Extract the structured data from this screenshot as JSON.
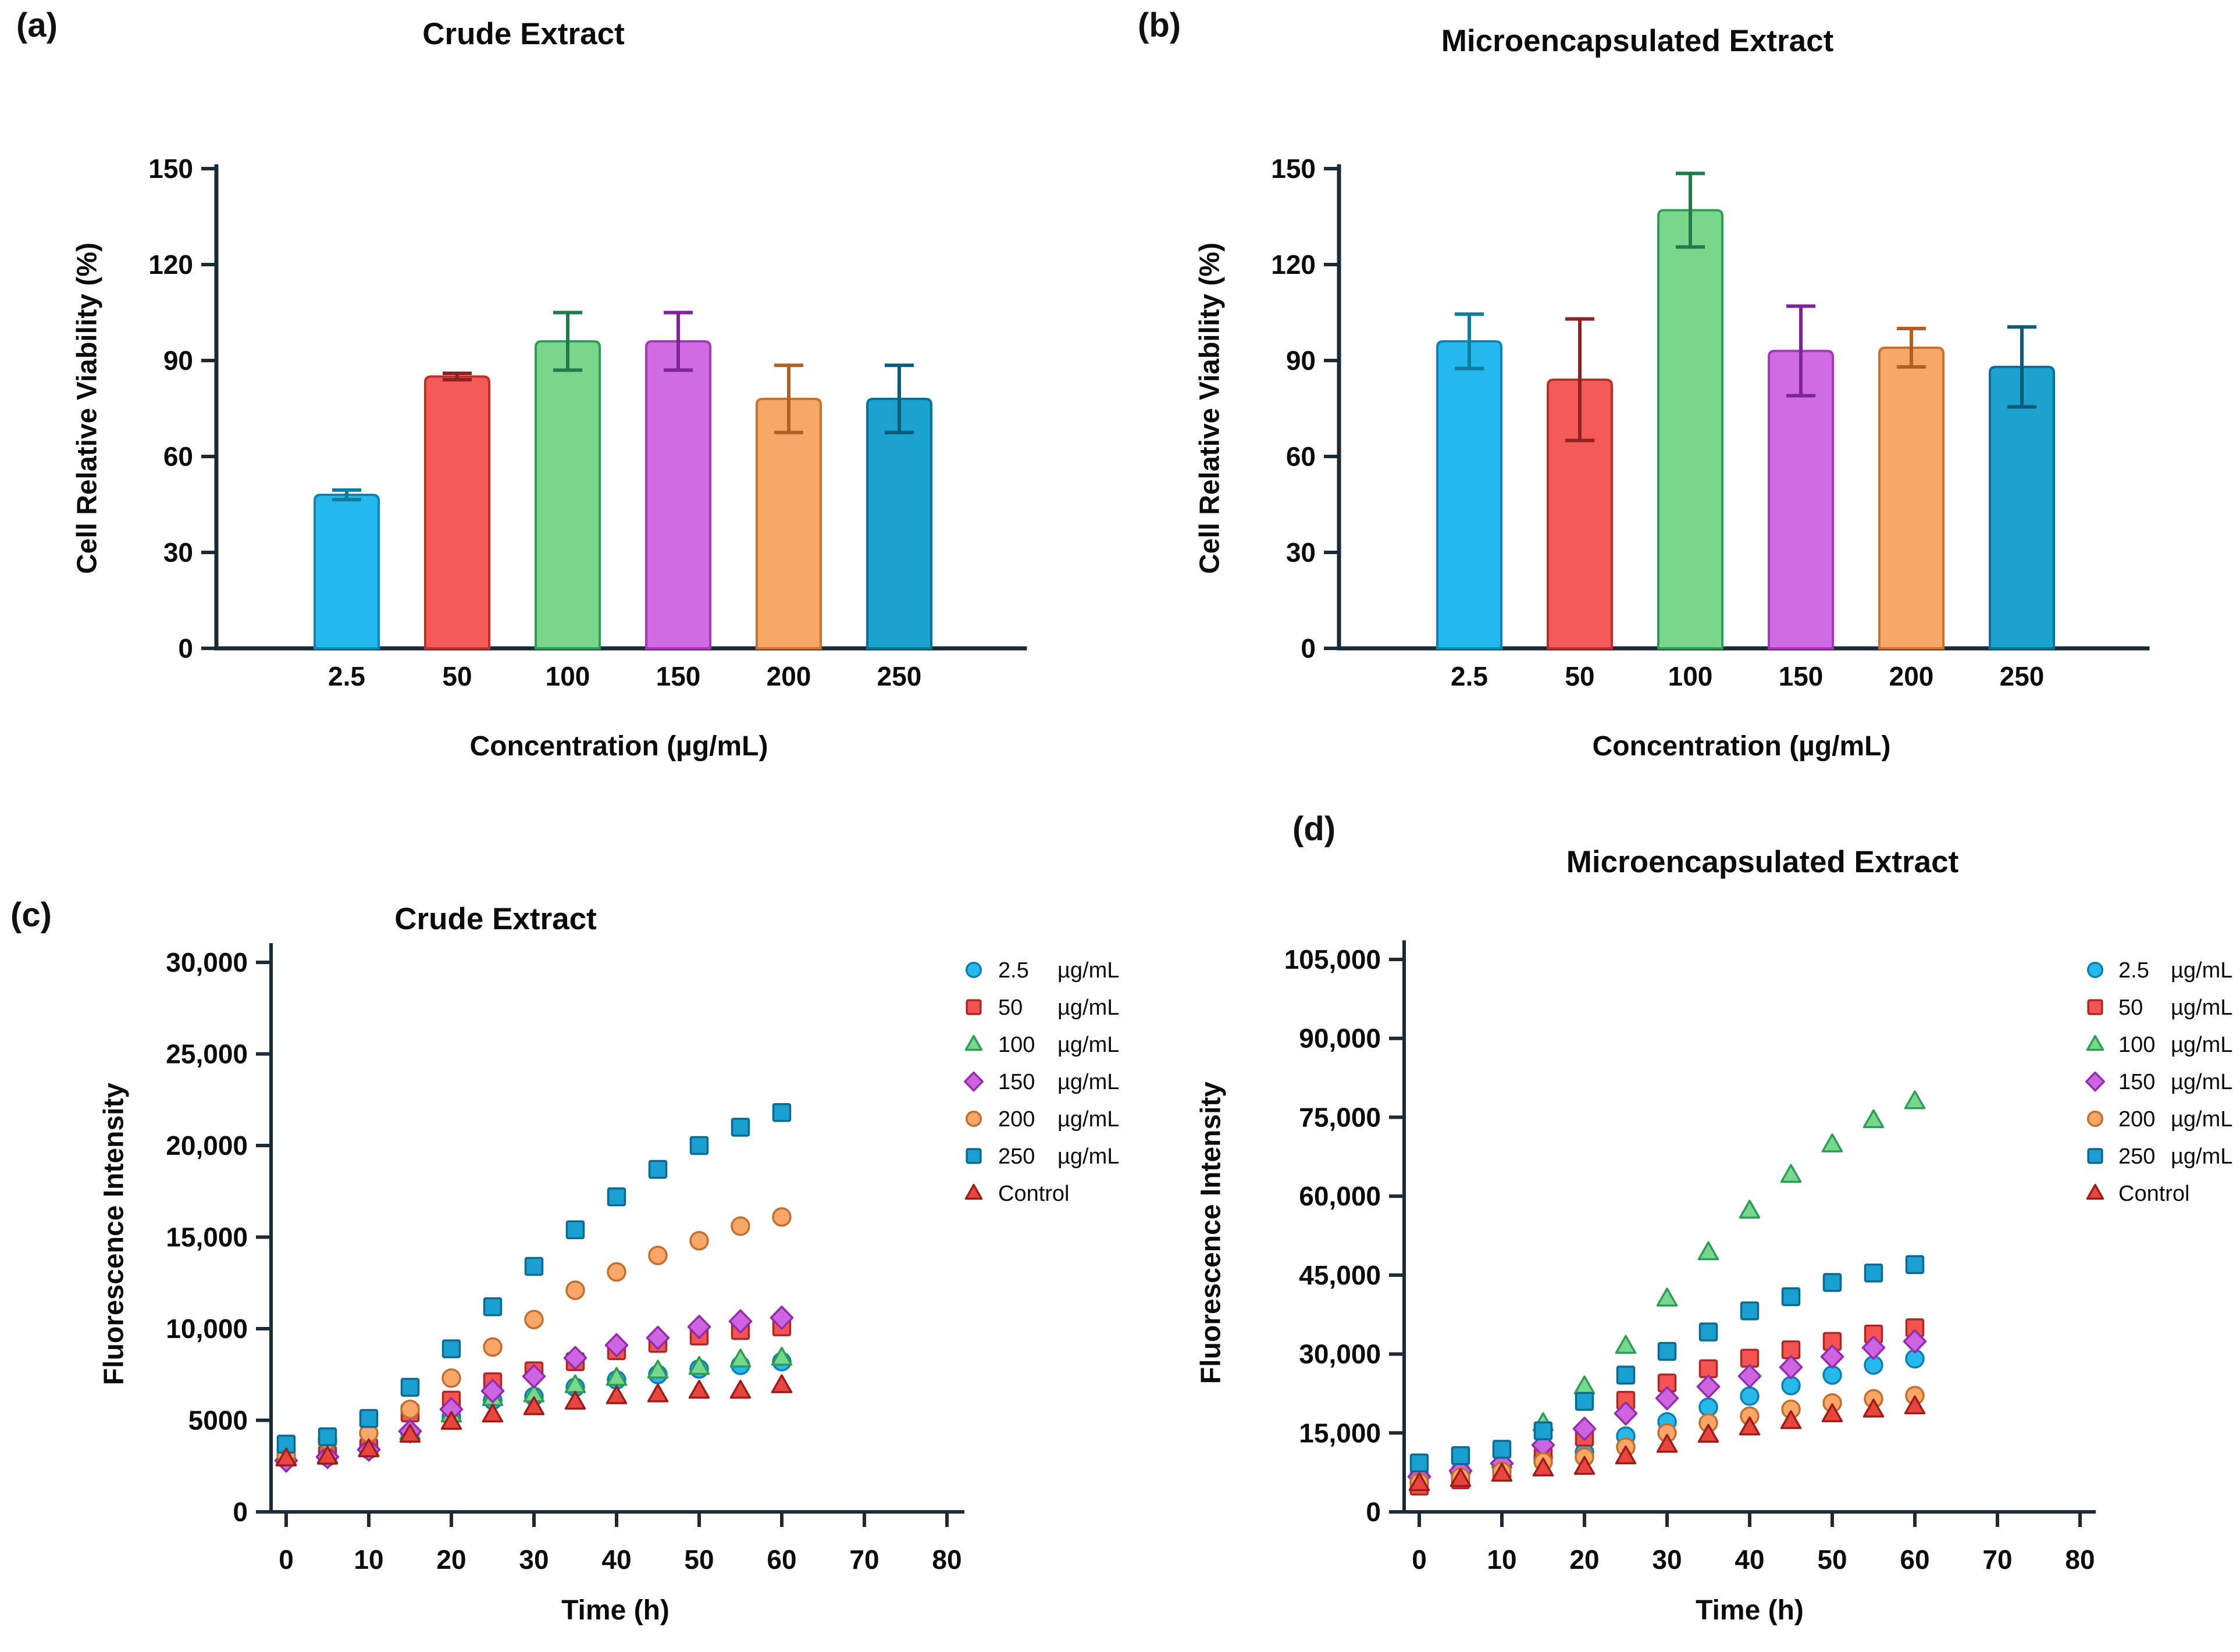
{
  "figure": {
    "background": "#ffffff",
    "axis_color": "#1c2a35",
    "text_color": "#0b0b0b"
  },
  "panels": {
    "a": {
      "letter": "(a)",
      "title": "Crude Extract",
      "ylabel": "Cell Relative Viability (%)",
      "xlabel": "Concentration (µg/mL)"
    },
    "b": {
      "letter": "(b)",
      "title": "Microencapsulated Extract",
      "ylabel": "Cell Relative Viability (%)",
      "xlabel": "Concentration (µg/mL)"
    },
    "c": {
      "letter": "(c)",
      "title": "Crude Extract",
      "ylabel": "Fluorescence Intensity",
      "xlabel": "Time (h)"
    },
    "d": {
      "letter": "(d)",
      "title": "Microencapsulated Extract",
      "ylabel": "Fluorescence Intensity",
      "xlabel": "Time (h)"
    }
  },
  "chart_data": [
    {
      "panel": "a",
      "type": "bar",
      "title": "Crude Extract",
      "xlabel": "Concentration (µg/mL)",
      "ylabel": "Cell Relative Viability (%)",
      "categories": [
        "2.5",
        "50",
        "100",
        "150",
        "200",
        "250"
      ],
      "values": [
        48,
        85,
        96,
        96,
        78,
        78
      ],
      "errors": [
        1.5,
        1,
        9,
        9,
        10.5,
        10.5
      ],
      "ylim": [
        0,
        150
      ],
      "ytick_values": [
        0,
        30,
        60,
        90,
        120,
        150
      ],
      "ytick_labels": [
        "0",
        "30",
        "60",
        "90",
        "120",
        "150"
      ],
      "grid": false,
      "bar_fills": [
        "#23b8ee",
        "#f45b57",
        "#79d78c",
        "#cf6ce4",
        "#f9a768",
        "#1ba2d0"
      ],
      "bar_strokes": [
        "#0d84b4",
        "#b9302d",
        "#2f9c55",
        "#a238bb",
        "#c4742f",
        "#0d6f95"
      ],
      "error_colors": [
        "#0e7c9f",
        "#8f2220",
        "#207a4b",
        "#7e2398",
        "#b06023",
        "#0a5b7a"
      ]
    },
    {
      "panel": "b",
      "type": "bar",
      "title": "Microencapsulated Extract",
      "xlabel": "Concentration (µg/mL)",
      "ylabel": "Cell Relative Viability (%)",
      "categories": [
        "2.5",
        "50",
        "100",
        "150",
        "200",
        "250"
      ],
      "values": [
        96,
        84,
        137,
        93,
        94,
        88
      ],
      "errors": [
        8.5,
        19,
        11.5,
        14,
        6,
        12.5
      ],
      "ylim": [
        0,
        150
      ],
      "ytick_values": [
        0,
        30,
        60,
        90,
        120,
        150
      ],
      "ytick_labels": [
        "0",
        "30",
        "60",
        "90",
        "120",
        "150"
      ],
      "grid": false,
      "bar_fills": [
        "#23b8ee",
        "#f45b57",
        "#79d78c",
        "#cf6ce4",
        "#f9a768",
        "#1ba2d0"
      ],
      "bar_strokes": [
        "#0d84b4",
        "#b9302d",
        "#2f9c55",
        "#a238bb",
        "#c4742f",
        "#0d6f95"
      ],
      "error_colors": [
        "#0e7c9f",
        "#8f2220",
        "#207a4b",
        "#7e2398",
        "#b06023",
        "#0a5b7a"
      ]
    },
    {
      "panel": "c",
      "type": "scatter",
      "title": "Crude Extract",
      "xlabel": "Time (h)",
      "ylabel": "Fluorescence Intensity",
      "x": [
        0,
        5,
        10,
        15,
        20,
        25,
        30,
        35,
        40,
        45,
        50,
        55,
        60
      ],
      "xlim": [
        0,
        80
      ],
      "xtick_values": [
        0,
        10,
        20,
        30,
        40,
        50,
        60,
        70,
        80
      ],
      "xtick_labels": [
        "0",
        "10",
        "20",
        "30",
        "40",
        "50",
        "60",
        "70",
        "80"
      ],
      "ylim": [
        0,
        30000
      ],
      "ytick_values": [
        0,
        5000,
        10000,
        15000,
        20000,
        25000,
        30000
      ],
      "ytick_labels": [
        "0",
        "5000",
        "10,000",
        "15,000",
        "20,000",
        "25,000",
        "30,000"
      ],
      "grid": false,
      "legend_position": "right",
      "series": [
        {
          "qty": "2.5",
          "unit": "µg/mL",
          "name": "2.5 µg/mL",
          "marker": "circle",
          "fill": "#25b9ec",
          "stroke": "#0d7fae",
          "values": [
            2900,
            3000,
            3400,
            4300,
            5200,
            6100,
            6300,
            6800,
            7200,
            7500,
            7800,
            8000,
            8200
          ]
        },
        {
          "qty": "50",
          "unit": "µg/mL",
          "name": "50 µg/mL",
          "marker": "square",
          "fill": "#f4534f",
          "stroke": "#a92b28",
          "values": [
            3000,
            3100,
            3500,
            5400,
            6100,
            7100,
            7700,
            8200,
            8800,
            9200,
            9600,
            9900,
            10100
          ]
        },
        {
          "qty": "100",
          "unit": "µg/mL",
          "name": "100 µg/mL",
          "marker": "triangle",
          "fill": "#78d78e",
          "stroke": "#2e9c55",
          "values": [
            2950,
            3050,
            3450,
            4350,
            5300,
            6200,
            6400,
            6900,
            7300,
            7700,
            7900,
            8300,
            8400
          ]
        },
        {
          "qty": "150",
          "unit": "µg/mL",
          "name": "150 µg/mL",
          "marker": "diamond",
          "fill": "#cf64e2",
          "stroke": "#932cab",
          "values": [
            2800,
            3000,
            3400,
            4400,
            5600,
            6600,
            7400,
            8400,
            9100,
            9500,
            10100,
            10400,
            10600
          ]
        },
        {
          "qty": "200",
          "unit": "µg/mL",
          "name": "200 µg/mL",
          "marker": "circle",
          "fill": "#f9a666",
          "stroke": "#bf7030",
          "values": [
            3100,
            3900,
            4300,
            5600,
            7300,
            9000,
            10500,
            12100,
            13100,
            14000,
            14800,
            15600,
            16100
          ]
        },
        {
          "qty": "250",
          "unit": "µg/mL",
          "name": "250 µg/mL",
          "marker": "square",
          "fill": "#199fd0",
          "stroke": "#0b6a8e",
          "values": [
            3700,
            4100,
            5100,
            6800,
            8900,
            11200,
            13400,
            15400,
            17200,
            18700,
            20000,
            21000,
            21800
          ]
        },
        {
          "qty": "Control",
          "unit": "",
          "name": "Control",
          "marker": "triangle",
          "fill": "#e9453f",
          "stroke": "#9b1c18",
          "values": [
            2900,
            3000,
            3400,
            4200,
            4900,
            5300,
            5700,
            6000,
            6300,
            6400,
            6600,
            6600,
            6900
          ]
        }
      ]
    },
    {
      "panel": "d",
      "type": "scatter",
      "title": "Microencapsulated Extract",
      "xlabel": "Time (h)",
      "ylabel": "Fluorescence Intensity",
      "x": [
        0,
        5,
        10,
        15,
        20,
        25,
        30,
        35,
        40,
        45,
        50,
        55,
        60
      ],
      "xlim": [
        0,
        80
      ],
      "xtick_values": [
        0,
        10,
        20,
        30,
        40,
        50,
        60,
        70,
        80
      ],
      "xtick_labels": [
        "0",
        "10",
        "20",
        "30",
        "40",
        "50",
        "60",
        "70",
        "80"
      ],
      "ylim": [
        0,
        105000
      ],
      "ytick_values": [
        0,
        15000,
        30000,
        45000,
        60000,
        75000,
        90000,
        105000
      ],
      "ytick_labels": [
        "0",
        "15,000",
        "30,000",
        "45,000",
        "60,000",
        "75,000",
        "90,000",
        "105,000"
      ],
      "grid": false,
      "legend_position": "right",
      "series": [
        {
          "qty": "2.5",
          "unit": "µg/mL",
          "name": "2.5 µg/mL",
          "marker": "circle",
          "fill": "#25b9ec",
          "stroke": "#0d7fae",
          "values": [
            7000,
            7800,
            8800,
            10300,
            11300,
            14400,
            17100,
            19900,
            22000,
            24000,
            26000,
            27900,
            29100
          ]
        },
        {
          "qty": "50",
          "unit": "µg/mL",
          "name": "50 µg/mL",
          "marker": "square",
          "fill": "#f4534f",
          "stroke": "#a92b28",
          "values": [
            4900,
            6100,
            8000,
            10500,
            14200,
            21200,
            24500,
            27200,
            29200,
            30800,
            32400,
            33800,
            35000
          ]
        },
        {
          "qty": "100",
          "unit": "µg/mL",
          "name": "100 µg/mL",
          "marker": "triangle",
          "fill": "#78d78e",
          "stroke": "#2e9c55",
          "values": [
            8000,
            8600,
            9700,
            16800,
            23800,
            31500,
            40500,
            49300,
            57200,
            64000,
            69800,
            74400,
            78000
          ]
        },
        {
          "qty": "150",
          "unit": "µg/mL",
          "name": "150 µg/mL",
          "marker": "diamond",
          "fill": "#cf64e2",
          "stroke": "#932cab",
          "values": [
            6700,
            7800,
            9200,
            12700,
            15800,
            18700,
            21600,
            23800,
            25800,
            27500,
            29500,
            31200,
            32400
          ]
        },
        {
          "qty": "200",
          "unit": "µg/mL",
          "name": "200 µg/mL",
          "marker": "circle",
          "fill": "#f9a666",
          "stroke": "#bf7030",
          "values": [
            5600,
            6600,
            7700,
            9500,
            10400,
            12300,
            15000,
            16900,
            18200,
            19500,
            20700,
            21500,
            22100
          ]
        },
        {
          "qty": "250",
          "unit": "µg/mL",
          "name": "250 µg/mL",
          "marker": "square",
          "fill": "#199fd0",
          "stroke": "#0b6a8e",
          "values": [
            9300,
            10700,
            11900,
            15400,
            21000,
            26000,
            30500,
            34200,
            38200,
            40900,
            43600,
            45400,
            47000
          ]
        },
        {
          "qty": "Control",
          "unit": "",
          "name": "Control",
          "marker": "triangle",
          "fill": "#e9453f",
          "stroke": "#9b1c18",
          "values": [
            5400,
            6200,
            7200,
            8200,
            8500,
            10500,
            12700,
            14600,
            16000,
            17200,
            18500,
            19400,
            20000
          ]
        }
      ]
    }
  ]
}
